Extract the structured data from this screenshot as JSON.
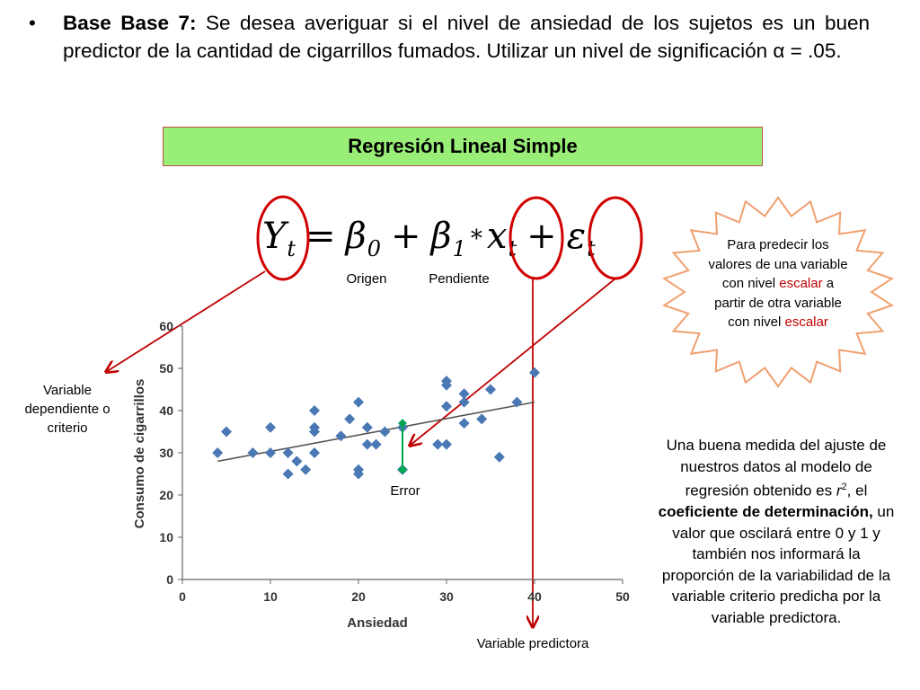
{
  "intro": {
    "bullet": "•",
    "lead": "Base Base 7:",
    "text": " Se desea averiguar si el nivel de ansiedad de los sujetos es un buen predictor de la cantidad de cigarrillos fumados. Utilizar un nivel de significación α = .05."
  },
  "title": "Regresión Lineal Simple",
  "formula": {
    "y": "Y",
    "y_sub": "t",
    "eq": "=",
    "b0": "β",
    "b0_sub": "0",
    "plus": "+",
    "b1": "β",
    "b1_sub": "1",
    "star": "*",
    "x": "x",
    "x_sub": "t",
    "plus2": "+",
    "e": "ε",
    "e_sub": "t"
  },
  "labels": {
    "origen": "Origen",
    "pendiente": "Pendiente",
    "dependiente": "Variable dependiente o criterio",
    "error": "Error",
    "predictora": "Variable predictora"
  },
  "burst": {
    "part1": "Para predecir los valores de una variable con nivel ",
    "hl1": "escalar",
    "part2": " a partir de otra variable con nivel ",
    "hl2": "escalar"
  },
  "explanation": {
    "part1": "Una buena medida del ajuste de nuestros datos al modelo de regresión obtenido es ",
    "r2_base": "r",
    "r2_sup": "2",
    "part2": ", el ",
    "bold": "coeficiente de determinación,",
    "part3": " un valor que oscilará entre 0 y 1 y también nos informará la proporción de la variabilidad de la variable criterio predicha por la variable predictora."
  },
  "colors": {
    "points": "#4a78b4",
    "error": "#00a650",
    "arrow": "#c00000",
    "title_bg": "#99ee77"
  },
  "chart_data": {
    "type": "scatter",
    "xlabel": "Ansiedad",
    "ylabel": "Consumo de cigarrillos",
    "xlim": [
      0,
      50
    ],
    "ylim": [
      0,
      60
    ],
    "xticks": [
      0,
      10,
      20,
      30,
      40,
      50
    ],
    "yticks": [
      0,
      10,
      20,
      30,
      40,
      50,
      60
    ],
    "points": [
      [
        4,
        30
      ],
      [
        5,
        35
      ],
      [
        8,
        30
      ],
      [
        10,
        30
      ],
      [
        10,
        36
      ],
      [
        12,
        30
      ],
      [
        12,
        25
      ],
      [
        13,
        28
      ],
      [
        14,
        26
      ],
      [
        15,
        30
      ],
      [
        15,
        35
      ],
      [
        15,
        36
      ],
      [
        15,
        40
      ],
      [
        18,
        34
      ],
      [
        19,
        38
      ],
      [
        20,
        42
      ],
      [
        20,
        26
      ],
      [
        20,
        25
      ],
      [
        21,
        36
      ],
      [
        21,
        32
      ],
      [
        22,
        32
      ],
      [
        23,
        35
      ],
      [
        25,
        36
      ],
      [
        25,
        26
      ],
      [
        29,
        32
      ],
      [
        30,
        47
      ],
      [
        30,
        46
      ],
      [
        30,
        41
      ],
      [
        30,
        32
      ],
      [
        32,
        44
      ],
      [
        32,
        42
      ],
      [
        32,
        37
      ],
      [
        34,
        38
      ],
      [
        35,
        45
      ],
      [
        36,
        29
      ],
      [
        38,
        42
      ],
      [
        40,
        49
      ]
    ],
    "regression_line": {
      "x": [
        4,
        40
      ],
      "y": [
        28,
        42
      ]
    },
    "error_segment": {
      "x": 25,
      "y_from": 26,
      "y_to": 37
    }
  }
}
